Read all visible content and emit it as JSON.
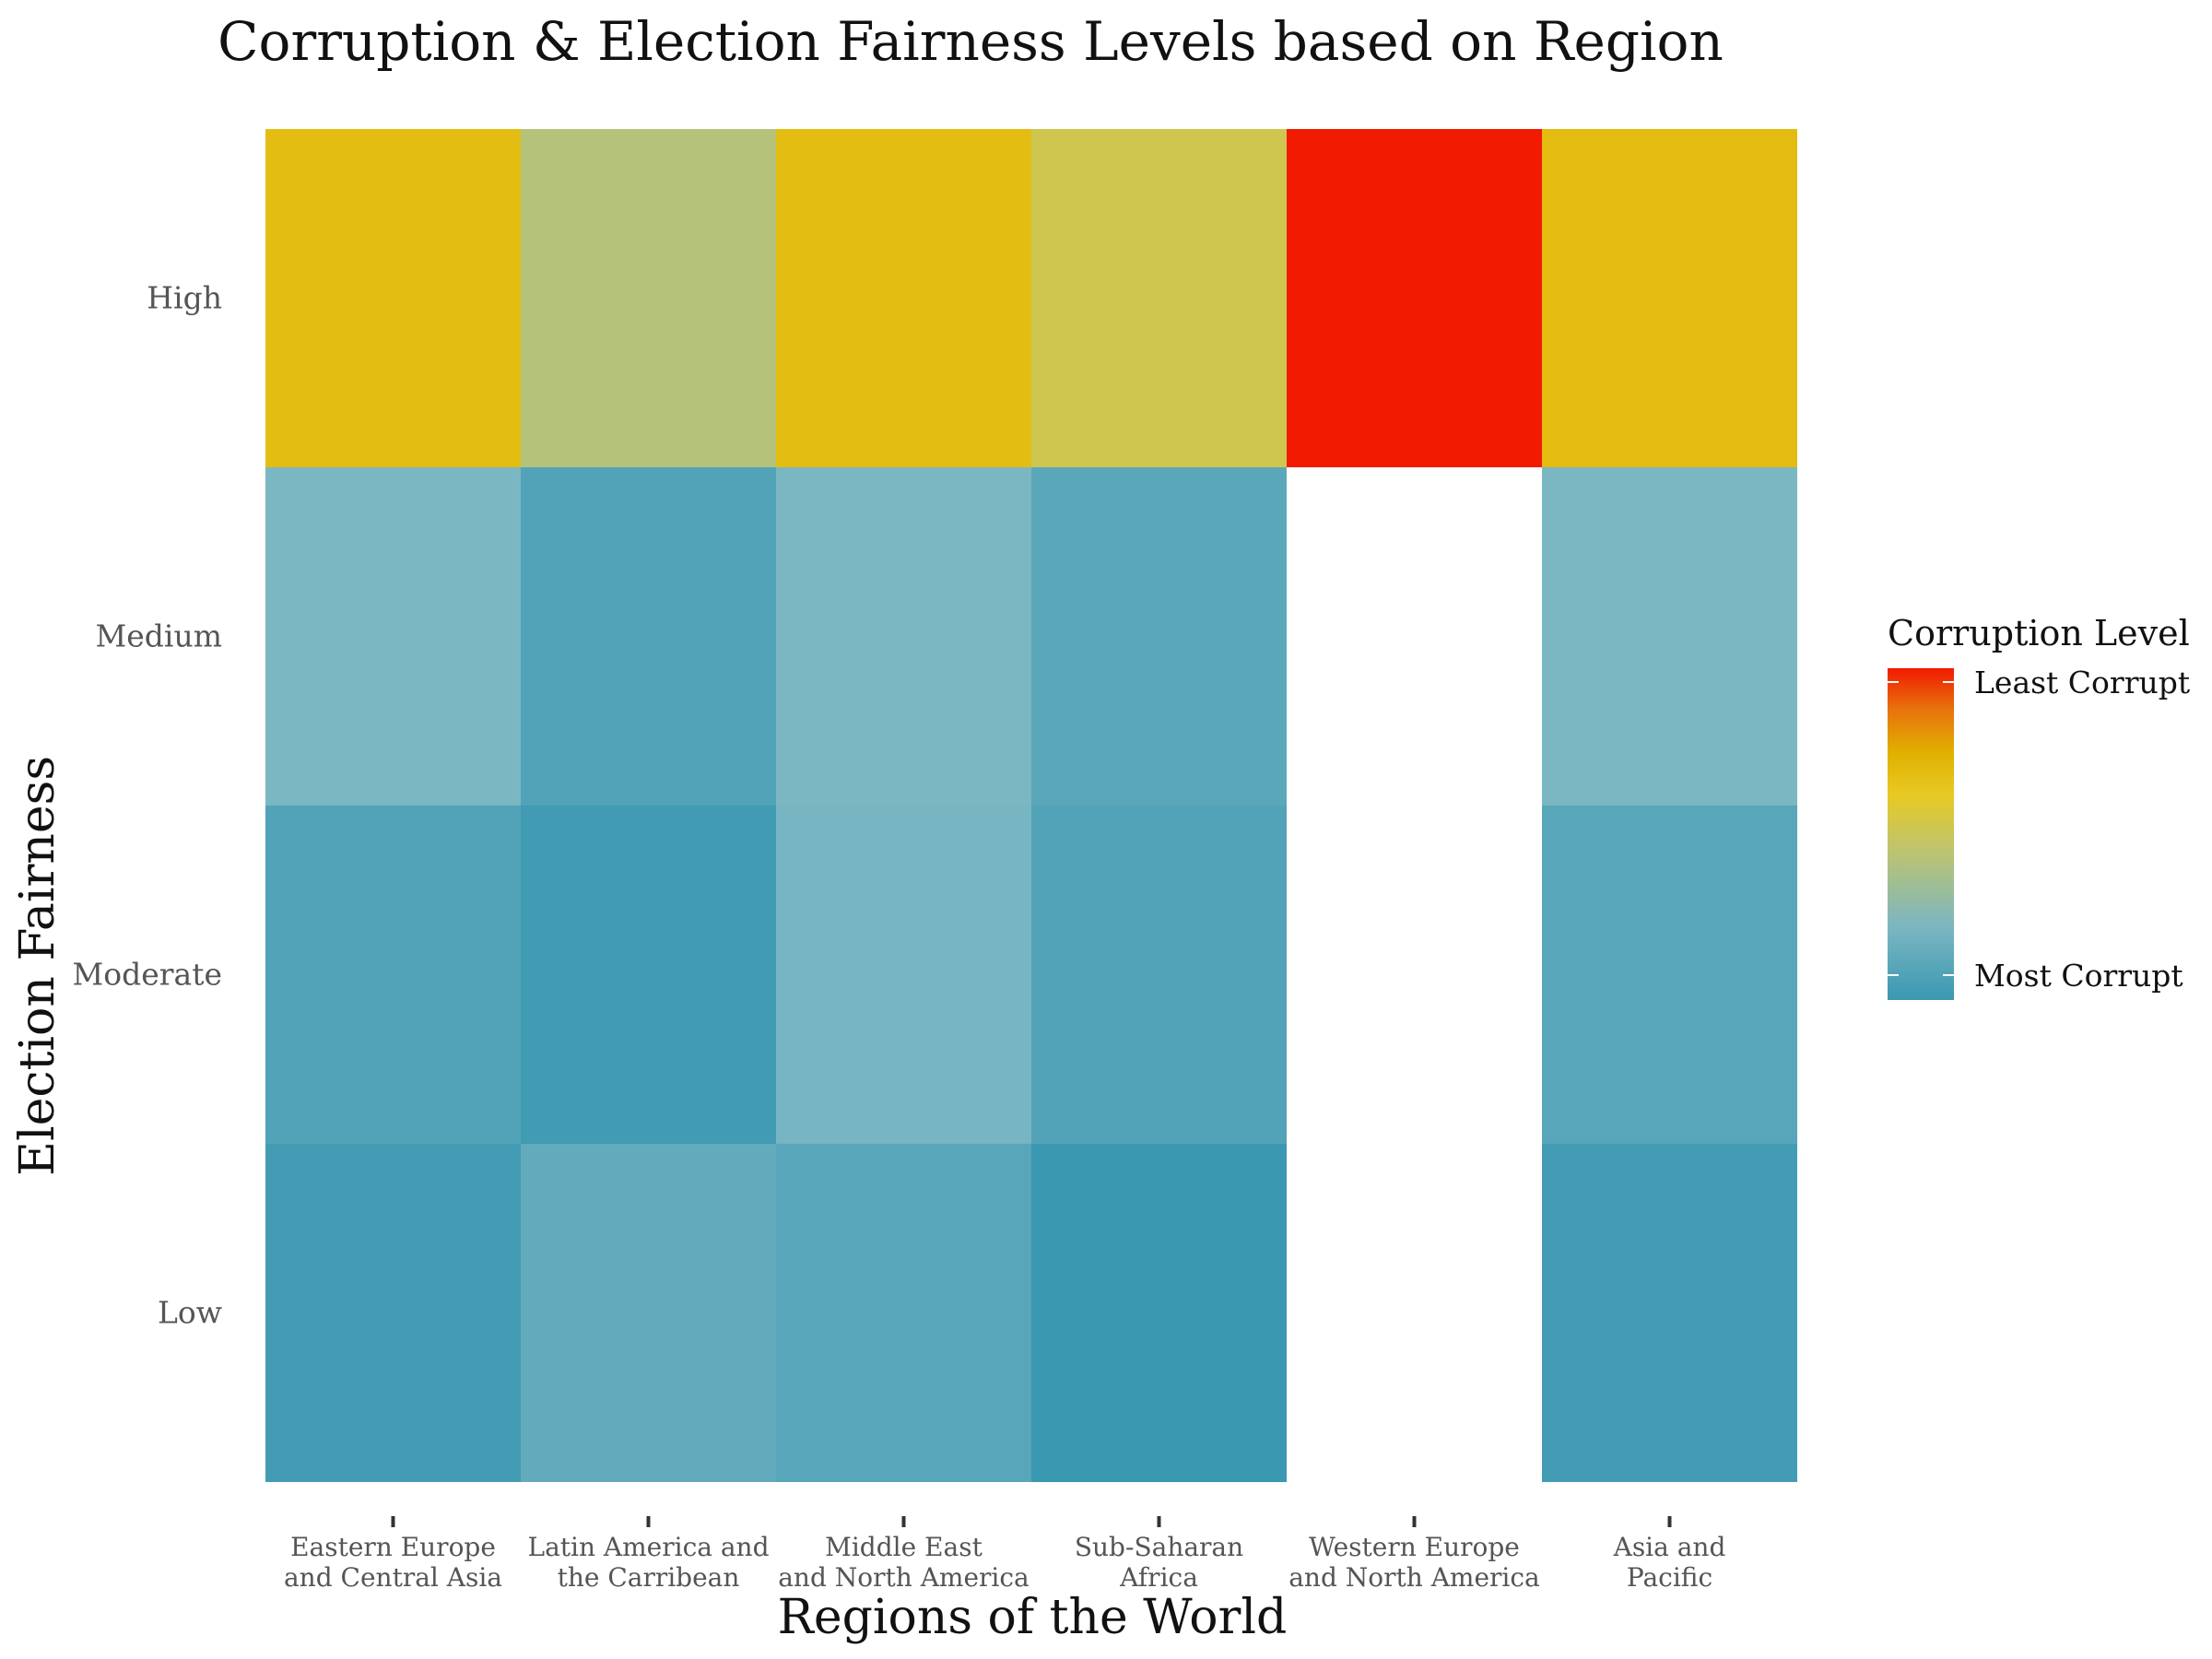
{
  "chart_data": {
    "type": "heatmap",
    "title": "Corruption & Election Fairness Levels based on Region",
    "xlabel": "Regions of the World",
    "ylabel": "Election Fairness",
    "categories": [
      "Eastern Europe\nand Central Asia",
      "Latin America and\nthe Carribean",
      "Middle East\nand North America",
      "Sub-Saharan\nAfrica",
      "Western Europe\nand North America",
      "Asia and\nPacific"
    ],
    "y_categories": [
      "High",
      "Medium",
      "Moderate",
      "Low"
    ],
    "values": [
      [
        0.68,
        0.42,
        0.68,
        0.52,
        1.0,
        0.69
      ],
      [
        0.22,
        0.08,
        0.22,
        0.11,
        null,
        0.22
      ],
      [
        0.08,
        0.02,
        0.21,
        0.08,
        null,
        0.1
      ],
      [
        0.03,
        0.14,
        0.1,
        0.0,
        null,
        0.03
      ]
    ],
    "legend": {
      "title": "Corruption Level",
      "high_label": "Least Corrupt",
      "low_label": "Most Corrupt",
      "position": "right"
    },
    "colors": {
      "gradient": [
        "#3a98b1",
        "#7bb6c3",
        "#bdc46f",
        "#e8c923",
        "#e0af00",
        "#e8700e",
        "#f21a00"
      ],
      "missing": "#ffffff"
    },
    "grid": false
  }
}
